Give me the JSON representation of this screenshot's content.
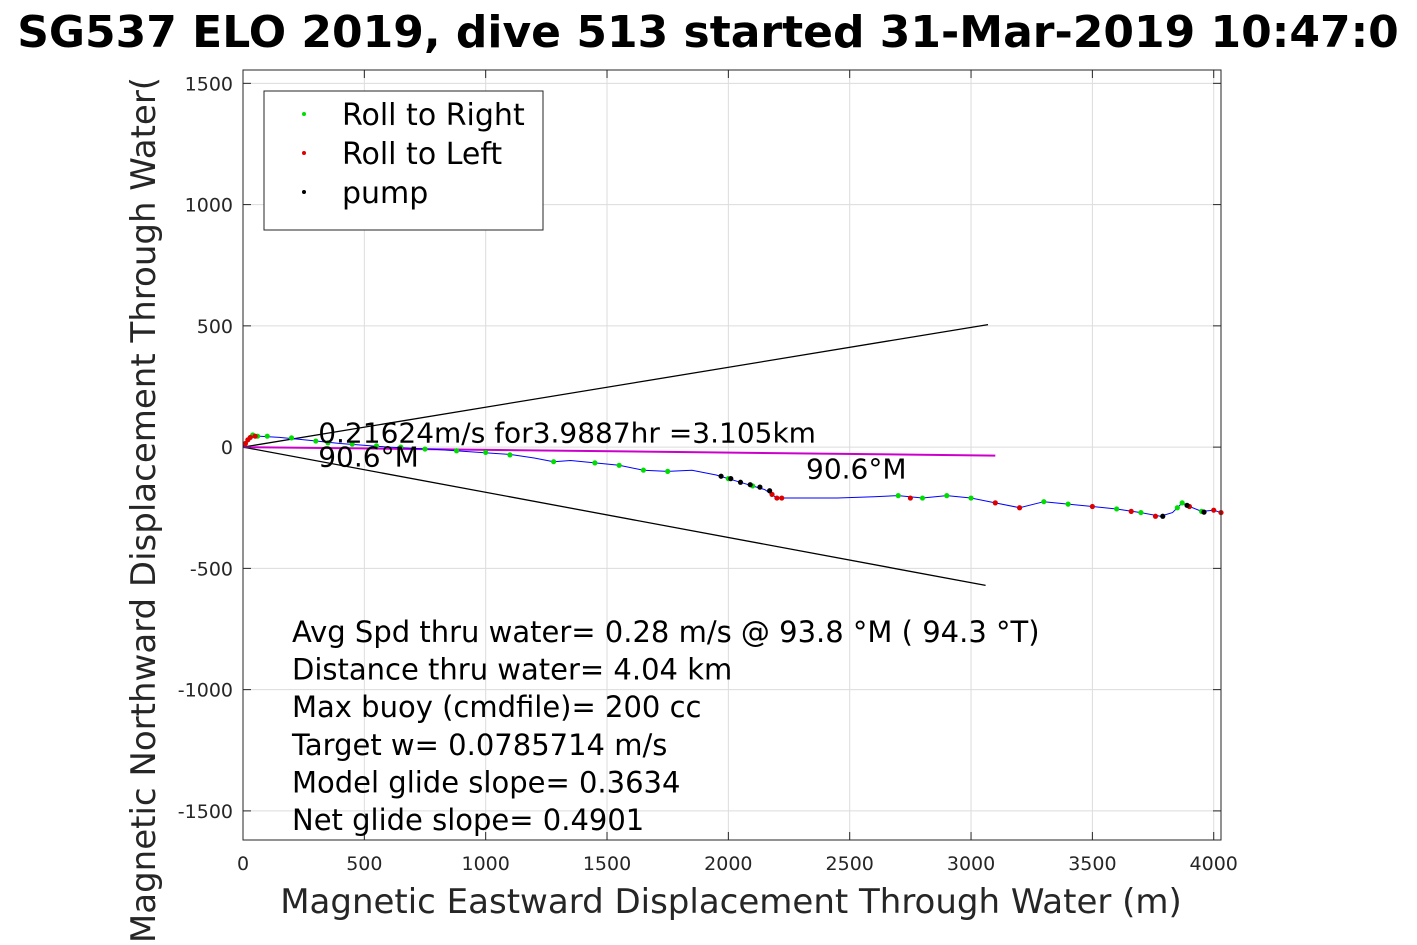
{
  "chart_data": {
    "type": "scatter",
    "title": "SG537 ELO 2019, dive 513 started 31-Mar-2019 10:47:0",
    "xlabel": "Magnetic Eastward Displacement Through Water (m)",
    "ylabel": "Magnetic Northward Displacement Through Water(",
    "xlim": [
      0,
      4030
    ],
    "ylim": [
      -1620,
      1555
    ],
    "xticks": [
      0,
      500,
      1000,
      1500,
      2000,
      2500,
      3000,
      3500,
      4000
    ],
    "yticks": [
      1500,
      1000,
      500,
      0,
      -500,
      -1000,
      -1500
    ],
    "xtick_labels": [
      "0",
      "500",
      "1000",
      "1500",
      "2000",
      "2500",
      "3000",
      "3500",
      "4000"
    ],
    "ytick_labels": [
      "1500",
      "1000",
      "500",
      "0",
      "-500",
      "-1000",
      "-1500"
    ],
    "grid": true,
    "legend_position": "top-left",
    "legend": [
      {
        "label": "Roll to Right",
        "color": "#00dd00"
      },
      {
        "label": "Roll to Left",
        "color": "#dd0000"
      },
      {
        "label": "pump",
        "color": "#000000"
      }
    ],
    "colors": {
      "track": "#0000ff",
      "current": "#cc00cc",
      "cone": "#000000"
    },
    "track": [
      [
        0,
        0
      ],
      [
        20,
        30
      ],
      [
        50,
        45
      ],
      [
        70,
        45
      ],
      [
        150,
        40
      ],
      [
        250,
        30
      ],
      [
        400,
        15
      ],
      [
        600,
        0
      ],
      [
        800,
        -10
      ],
      [
        950,
        -20
      ],
      [
        1100,
        -30
      ],
      [
        1200,
        -45
      ],
      [
        1280,
        -60
      ],
      [
        1350,
        -55
      ],
      [
        1450,
        -65
      ],
      [
        1550,
        -75
      ],
      [
        1650,
        -95
      ],
      [
        1750,
        -100
      ],
      [
        1850,
        -95
      ],
      [
        1950,
        -115
      ],
      [
        2050,
        -145
      ],
      [
        2150,
        -175
      ],
      [
        2200,
        -210
      ],
      [
        2300,
        -210
      ],
      [
        2450,
        -210
      ],
      [
        2600,
        -205
      ],
      [
        2700,
        -200
      ],
      [
        2800,
        -210
      ],
      [
        2900,
        -200
      ],
      [
        3000,
        -210
      ],
      [
        3100,
        -230
      ],
      [
        3200,
        -250
      ],
      [
        3300,
        -225
      ],
      [
        3400,
        -235
      ],
      [
        3500,
        -245
      ],
      [
        3600,
        -255
      ],
      [
        3700,
        -270
      ],
      [
        3780,
        -285
      ],
      [
        3830,
        -270
      ],
      [
        3870,
        -230
      ],
      [
        3900,
        -245
      ],
      [
        3950,
        -265
      ],
      [
        4000,
        -260
      ],
      [
        4030,
        -270
      ]
    ],
    "current_line": [
      [
        0,
        0
      ],
      [
        3100,
        -35
      ]
    ],
    "cone_upper": [
      [
        0,
        0
      ],
      [
        3070,
        505
      ]
    ],
    "cone_lower": [
      [
        0,
        0
      ],
      [
        3060,
        -570
      ]
    ],
    "series": [
      {
        "name": "Roll to Right",
        "points": [
          [
            40,
            50
          ],
          [
            60,
            45
          ],
          [
            100,
            45
          ],
          [
            200,
            38
          ],
          [
            300,
            25
          ],
          [
            350,
            18
          ],
          [
            450,
            12
          ],
          [
            550,
            5
          ],
          [
            650,
            0
          ],
          [
            750,
            -8
          ],
          [
            880,
            -15
          ],
          [
            1000,
            -22
          ],
          [
            1100,
            -32
          ],
          [
            1280,
            -60
          ],
          [
            1450,
            -65
          ],
          [
            1550,
            -75
          ],
          [
            1650,
            -95
          ],
          [
            1750,
            -100
          ],
          [
            2000,
            -130
          ],
          [
            2100,
            -160
          ],
          [
            2700,
            -200
          ],
          [
            2800,
            -210
          ],
          [
            2900,
            -200
          ],
          [
            3000,
            -210
          ],
          [
            3300,
            -225
          ],
          [
            3400,
            -235
          ],
          [
            3600,
            -255
          ],
          [
            3700,
            -270
          ],
          [
            3850,
            -250
          ],
          [
            3870,
            -230
          ],
          [
            3950,
            -265
          ]
        ]
      },
      {
        "name": "Roll to Left",
        "points": [
          [
            10,
            15
          ],
          [
            20,
            30
          ],
          [
            30,
            40
          ],
          [
            50,
            45
          ],
          [
            2180,
            -195
          ],
          [
            2200,
            -210
          ],
          [
            2220,
            -210
          ],
          [
            2750,
            -210
          ],
          [
            3100,
            -230
          ],
          [
            3200,
            -250
          ],
          [
            3500,
            -245
          ],
          [
            3660,
            -265
          ],
          [
            3760,
            -285
          ],
          [
            3900,
            -245
          ],
          [
            4000,
            -260
          ],
          [
            4030,
            -270
          ]
        ]
      },
      {
        "name": "pump",
        "points": [
          [
            1970,
            -120
          ],
          [
            2010,
            -130
          ],
          [
            2050,
            -145
          ],
          [
            2090,
            -155
          ],
          [
            2130,
            -165
          ],
          [
            2170,
            -180
          ],
          [
            3790,
            -285
          ],
          [
            3890,
            -240
          ],
          [
            3960,
            -268
          ]
        ]
      }
    ],
    "annotations": [
      {
        "text": "0.21624m/s for3.9887hr =3.105km",
        "x": 310,
        "y": 20
      },
      {
        "text": "90.6°M",
        "x": 310,
        "y": -80
      },
      {
        "text": "90.6°M",
        "x": 2320,
        "y": -130
      }
    ],
    "stats_lines": [
      "Avg Spd thru water=  0.28 m/s @  93.8 °M ( 94.3 °T)",
      "Distance thru water=  4.04 km",
      "Max buoy (cmdfile)= 200 cc",
      "Target w= 0.0785714 m/s",
      "Model glide slope= 0.3634",
      "Net glide slope= 0.4901"
    ],
    "stats_anchor": [
      205,
      -700
    ]
  }
}
